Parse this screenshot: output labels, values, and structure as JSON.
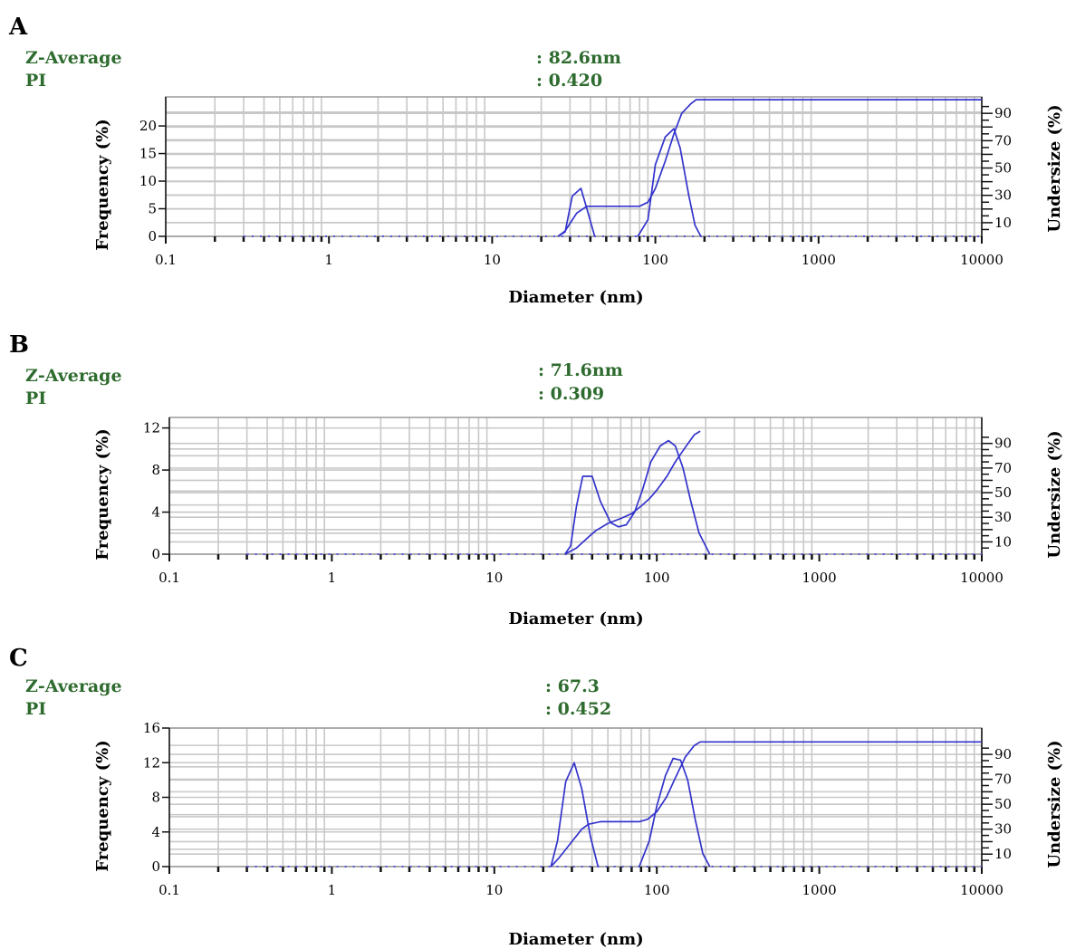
{
  "colors": {
    "series": "#3333cc",
    "baseline": "#5555dd",
    "stats_text": "#2e6b2e"
  },
  "chart_data": [
    {
      "panel": "A",
      "type": "line",
      "stats": {
        "z_label": "Z-Average",
        "pi_label": "PI",
        "z_value": ": 82.6nm",
        "pi_value": ": 0.420"
      },
      "xlabel": "Diameter (nm)",
      "ylabel_left": "Frequency (%)",
      "ylabel_right": "Undersize (%)",
      "x_scale": "log",
      "xlim": [
        0.1,
        10000
      ],
      "x_ticks": [
        "0.1",
        "1",
        "10",
        "100",
        "1000",
        "10000"
      ],
      "ylim_left": [
        0,
        24
      ],
      "y_ticks_left": [
        "0",
        "5",
        "10",
        "15",
        "20"
      ],
      "ylim_right": [
        0,
        100
      ],
      "y_ticks_right": [
        "10",
        "30",
        "50",
        "70",
        "90"
      ],
      "grid": true,
      "baseline_range": [
        0.3,
        10000
      ],
      "series": [
        {
          "axis": "left",
          "x": [
            25.3,
            28,
            31,
            35,
            38.5,
            42.5
          ],
          "y": [
            0,
            0.8,
            7.3,
            8.7,
            4.5,
            0
          ]
        },
        {
          "axis": "left",
          "x": [
            78,
            90,
            100,
            115,
            130,
            142,
            160,
            175,
            190
          ],
          "y": [
            0,
            3,
            13,
            18,
            19.5,
            16,
            7.5,
            2,
            0
          ]
        },
        {
          "axis": "right",
          "x": [
            25.3,
            28,
            33,
            38,
            42,
            60,
            80,
            90,
            100,
            115,
            130,
            145,
            165,
            178,
            10000
          ],
          "y": [
            0,
            4,
            17,
            22,
            22,
            22,
            22,
            25,
            35,
            55,
            75,
            90,
            97,
            100,
            100
          ]
        }
      ]
    },
    {
      "panel": "B",
      "type": "line",
      "stats": {
        "z_label": "Z-Average",
        "pi_label": "PI",
        "z_value": ": 71.6nm",
        "pi_value": ": 0.309"
      },
      "xlabel": "Diameter (nm)",
      "ylabel_left": "Frequency (%)",
      "ylabel_right": "Undersize (%)",
      "x_scale": "log",
      "xlim": [
        0.1,
        10000
      ],
      "x_ticks": [
        "0.1",
        "1",
        "10",
        "100",
        "1000",
        "10000"
      ],
      "ylim_left": [
        0,
        13
      ],
      "y_ticks_left": [
        "0",
        "4",
        "8",
        "12"
      ],
      "ylim_right": [
        0,
        100
      ],
      "y_ticks_right": [
        "10",
        "30",
        "50",
        "70",
        "90"
      ],
      "grid": true,
      "baseline_range": [
        0.3,
        10000
      ],
      "series": [
        {
          "axis": "left",
          "x": [
            27.2,
            29.5,
            32,
            35,
            40,
            45,
            52,
            58,
            65,
            73,
            82,
            92,
            105,
            118,
            130,
            145,
            162,
            182,
            212
          ],
          "y": [
            0,
            0.8,
            4.5,
            7.4,
            7.4,
            5,
            3,
            2.6,
            2.8,
            4,
            6.2,
            8.8,
            10.3,
            10.8,
            10.3,
            8.2,
            5,
            2,
            0
          ]
        },
        {
          "axis": "right",
          "x": [
            27.2,
            32,
            38,
            42,
            50,
            60,
            70,
            80,
            90,
            100,
            115,
            130,
            150,
            170,
            185
          ],
          "y": [
            0,
            5,
            14,
            19,
            25,
            29,
            33,
            39,
            45,
            52,
            63,
            75,
            87,
            97,
            100
          ]
        }
      ]
    },
    {
      "panel": "C",
      "type": "line",
      "stats": {
        "z_label": "Z-Average",
        "pi_label": "PI",
        "z_value": ": 67.3",
        "pi_value": ": 0.452"
      },
      "xlabel": "Diameter (nm)",
      "ylabel_left": "Frequency (%)",
      "ylabel_right": "Undersize (%)",
      "x_scale": "log",
      "xlim": [
        0.1,
        10000
      ],
      "x_ticks": [
        "0.1",
        "1",
        "10",
        "100",
        "1000",
        "10000"
      ],
      "ylim_left": [
        0,
        16
      ],
      "y_ticks_left": [
        "0",
        "4",
        "8",
        "12",
        "16"
      ],
      "ylim_right": [
        0,
        100
      ],
      "y_ticks_right": [
        "10",
        "30",
        "50",
        "70",
        "90"
      ],
      "grid": true,
      "baseline_range": [
        0.3,
        10000
      ],
      "series": [
        {
          "axis": "left",
          "x": [
            22.3,
            24.5,
            27.5,
            31,
            34.5,
            39,
            43.5
          ],
          "y": [
            0,
            3,
            9.8,
            12,
            9,
            3.5,
            0
          ]
        },
        {
          "axis": "left",
          "x": [
            78,
            90,
            100,
            113,
            126,
            140,
            155,
            172,
            192,
            212
          ],
          "y": [
            0,
            3,
            7,
            10.5,
            12.5,
            12.3,
            10,
            5.5,
            1.5,
            0
          ]
        },
        {
          "axis": "right",
          "x": [
            22.3,
            25,
            30,
            34.5,
            38,
            45,
            70,
            78,
            88,
            100,
            115,
            130,
            150,
            170,
            185,
            10000
          ],
          "y": [
            0,
            7,
            20,
            30,
            34,
            36,
            36,
            36,
            38,
            44,
            56,
            71,
            88,
            97,
            100,
            100
          ]
        }
      ]
    }
  ]
}
